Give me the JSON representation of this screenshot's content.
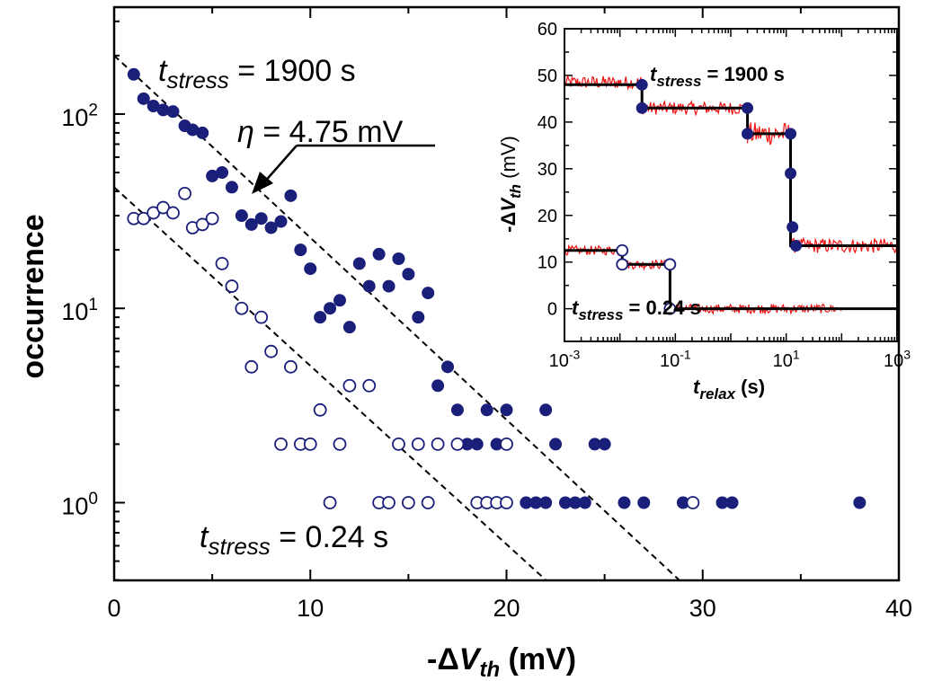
{
  "chart_data": [
    {
      "type": "scatter",
      "xlabel": {
        "prefix": "-Δ",
        "var": "V",
        "sub": "th",
        "unit": " (mV)"
      },
      "ylabel": "occurrence",
      "xlim": [
        0,
        40
      ],
      "ylim_log10": [
        -0.4,
        2.55
      ],
      "yscale": "log",
      "x_ticks": [
        "0",
        "10",
        "20",
        "30",
        "40"
      ],
      "y_ticks": [
        {
          "value": 1,
          "base": "10",
          "exp": "0"
        },
        {
          "value": 10,
          "base": "10",
          "exp": "1"
        },
        {
          "value": 100,
          "base": "10",
          "exp": "2"
        }
      ],
      "series": [
        {
          "marker": "filled",
          "color": "#1a1f7a",
          "points": [
            [
              1.0,
              160
            ],
            [
              1.5,
              120
            ],
            [
              2.0,
              110
            ],
            [
              2.5,
              105
            ],
            [
              3.0,
              103
            ],
            [
              3.6,
              87
            ],
            [
              4.0,
              83
            ],
            [
              4.5,
              80
            ],
            [
              5.0,
              48
            ],
            [
              5.5,
              50
            ],
            [
              6.0,
              42
            ],
            [
              6.5,
              30
            ],
            [
              7.0,
              27
            ],
            [
              7.5,
              29
            ],
            [
              8.0,
              26
            ],
            [
              8.5,
              28
            ],
            [
              9.0,
              38
            ],
            [
              9.5,
              20
            ],
            [
              10.0,
              16
            ],
            [
              10.5,
              9
            ],
            [
              11.0,
              10
            ],
            [
              11.5,
              11
            ],
            [
              12.0,
              8
            ],
            [
              12.5,
              17
            ],
            [
              13.0,
              13
            ],
            [
              13.5,
              19
            ],
            [
              14.0,
              13
            ],
            [
              14.5,
              18
            ],
            [
              15.0,
              15
            ],
            [
              15.5,
              9
            ],
            [
              16.0,
              12
            ],
            [
              16.5,
              4
            ],
            [
              17.0,
              5
            ],
            [
              17.5,
              3
            ],
            [
              18.0,
              2
            ],
            [
              18.5,
              2
            ],
            [
              19.0,
              3
            ],
            [
              19.5,
              2
            ],
            [
              20.0,
              3
            ],
            [
              20.0,
              2
            ],
            [
              21.0,
              1
            ],
            [
              21.5,
              1
            ],
            [
              22.0,
              1
            ],
            [
              22.0,
              3
            ],
            [
              22.5,
              2
            ],
            [
              23.0,
              1
            ],
            [
              23.5,
              1
            ],
            [
              24.0,
              1
            ],
            [
              24.5,
              2
            ],
            [
              25.0,
              2
            ],
            [
              26.0,
              1
            ],
            [
              27.0,
              1
            ],
            [
              29.0,
              1
            ],
            [
              31.0,
              1
            ],
            [
              31.5,
              1
            ],
            [
              38.0,
              1
            ]
          ]
        },
        {
          "marker": "open",
          "color": "#1a1f7a",
          "points": [
            [
              1.0,
              29
            ],
            [
              1.5,
              29
            ],
            [
              2.0,
              31
            ],
            [
              2.5,
              33
            ],
            [
              3.0,
              31
            ],
            [
              3.6,
              39
            ],
            [
              4.0,
              26
            ],
            [
              4.5,
              27
            ],
            [
              5.0,
              29
            ],
            [
              5.5,
              17
            ],
            [
              6.0,
              13
            ],
            [
              6.5,
              10
            ],
            [
              7.0,
              5
            ],
            [
              7.5,
              9
            ],
            [
              8.0,
              6
            ],
            [
              8.5,
              2
            ],
            [
              9.0,
              5
            ],
            [
              9.5,
              2
            ],
            [
              10.0,
              2
            ],
            [
              10.5,
              3
            ],
            [
              11.0,
              1
            ],
            [
              11.5,
              2
            ],
            [
              12.0,
              4
            ],
            [
              13.0,
              4
            ],
            [
              13.5,
              1
            ],
            [
              14.0,
              1
            ],
            [
              14.5,
              2
            ],
            [
              15.0,
              1
            ],
            [
              15.5,
              2
            ],
            [
              16.0,
              1
            ],
            [
              16.5,
              2
            ],
            [
              17.5,
              2
            ],
            [
              18.5,
              1
            ],
            [
              19.0,
              1
            ],
            [
              19.5,
              1
            ],
            [
              20.0,
              1
            ],
            [
              20.0,
              2
            ],
            [
              29.5,
              1
            ]
          ]
        }
      ],
      "fit_lines": [
        {
          "style": "dashed",
          "color": "#000000",
          "from": [
            0,
            200
          ],
          "to": [
            28.8,
            0.4
          ]
        },
        {
          "style": "dashed",
          "color": "#000000",
          "from": [
            0,
            42
          ],
          "to": [
            22.0,
            0.4
          ]
        }
      ],
      "annotations": {
        "top": {
          "var": "t",
          "sub": "stress",
          "text": " = 1900 s"
        },
        "eta": {
          "var": "η",
          "text": " = 4.75 mV"
        },
        "bottom": {
          "var": "t",
          "sub": "stress",
          "text": " = 0.24 s"
        }
      }
    },
    {
      "type": "line",
      "xscale": "log",
      "xlim_log10": [
        -3,
        3
      ],
      "ylim": [
        -7,
        60
      ],
      "xlabel": {
        "var": "t",
        "sub": "relax",
        "unit": " (s)"
      },
      "ylabel": {
        "prefix": "-Δ",
        "var": "V",
        "sub": "th",
        "unit": " (mV)"
      },
      "x_ticks": [
        {
          "value": 0.001,
          "base": "10",
          "exp": "-3"
        },
        {
          "value": 0.1,
          "base": "10",
          "exp": "-1"
        },
        {
          "value": 10,
          "base": "10",
          "exp": "1"
        },
        {
          "value": 1000,
          "base": "10",
          "exp": "3"
        }
      ],
      "y_ticks": [
        "0",
        "10",
        "20",
        "30",
        "40",
        "50",
        "60"
      ],
      "series": [
        {
          "kind": "step",
          "color": "#000000",
          "points": [
            [
              0.001,
              48
            ],
            [
              0.025,
              48
            ],
            [
              0.025,
              43
            ],
            [
              2.0,
              43
            ],
            [
              2.0,
              37.5
            ],
            [
              12.0,
              37.5
            ],
            [
              12.0,
              13.5
            ],
            [
              1000,
              13.5
            ]
          ],
          "markers_filled": [
            [
              0.025,
              48
            ],
            [
              0.025,
              43
            ],
            [
              2.0,
              43
            ],
            [
              2.0,
              37.5
            ],
            [
              12.0,
              37.5
            ],
            [
              12.0,
              29
            ],
            [
              13.0,
              17.5
            ],
            [
              15.0,
              13.5
            ]
          ]
        },
        {
          "kind": "step",
          "color": "#000000",
          "points": [
            [
              0.001,
              12.5
            ],
            [
              0.011,
              12.5
            ],
            [
              0.011,
              9.5
            ],
            [
              0.08,
              9.5
            ],
            [
              0.08,
              0
            ],
            [
              1000,
              0
            ]
          ],
          "markers_open": [
            [
              0.011,
              12.5
            ],
            [
              0.011,
              9.5
            ],
            [
              0.08,
              9.5
            ],
            [
              0.08,
              0
            ]
          ]
        },
        {
          "kind": "noisy",
          "color": "#ee1111",
          "segments": [
            {
              "from": 0.001,
              "to": 0.025,
              "level": 48.5,
              "noise": 1.4
            },
            {
              "from": 0.025,
              "to": 2.0,
              "level": 43,
              "noise": 1.4
            },
            {
              "from": 2.0,
              "to": 12.0,
              "level": 37.5,
              "noise": 2.5
            },
            {
              "from": 12.0,
              "to": 1000,
              "level": 13.5,
              "noise": 1.6
            },
            {
              "from": 0.001,
              "to": 0.011,
              "level": 12.5,
              "noise": 1.0
            },
            {
              "from": 0.011,
              "to": 0.08,
              "level": 9.5,
              "noise": 1.0
            },
            {
              "from": 0.08,
              "to": 100,
              "level": 0,
              "noise": 1.0
            }
          ]
        }
      ],
      "annotations": {
        "top": {
          "var": "t",
          "sub": "stress",
          "text": " = 1900 s"
        },
        "bottom": {
          "var": "t",
          "sub": "stress",
          "text": " = 0.24 s"
        }
      }
    }
  ]
}
